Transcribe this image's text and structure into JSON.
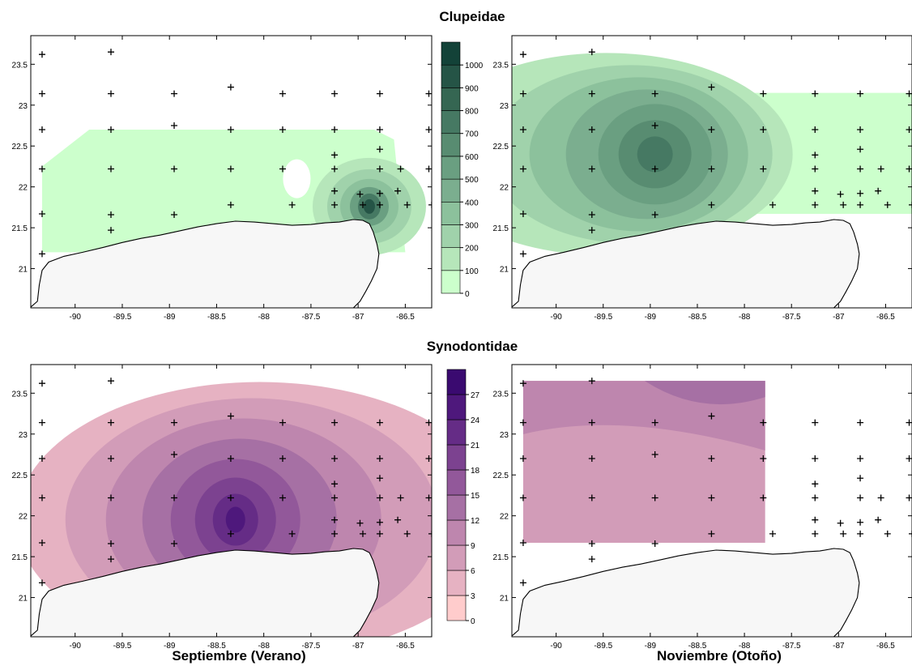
{
  "titles": {
    "row1": "Clupeidae",
    "row2": "Synodontidae",
    "col1": "Septiembre (Verano)",
    "col2": "Noviembre (Otoño)"
  },
  "axes": {
    "x_ticks": [
      "-90",
      "-89.5",
      "-89",
      "-88.5",
      "-88",
      "-87.5",
      "-87",
      "-86.5"
    ],
    "x_values": [
      -90,
      -89.5,
      -89,
      -88.5,
      -88,
      -87.5,
      -87,
      -86.5
    ],
    "y_ticks": [
      "21",
      "21.5",
      "22",
      "22.5",
      "23",
      "23.5"
    ],
    "y_values": [
      21,
      21.5,
      22,
      22.5,
      23,
      23.5
    ],
    "xlim": [
      -90.47,
      -86.22
    ],
    "ylim": [
      20.52,
      23.85
    ]
  },
  "colorbars": {
    "clupeidae": {
      "labels": [
        "0",
        "100",
        "200",
        "300",
        "400",
        "500",
        "600",
        "700",
        "800",
        "900",
        "1000"
      ],
      "colors": [
        "#ccffcc",
        "#b6e6ba",
        "#a0d2ab",
        "#8cc19c",
        "#7bae8f",
        "#6a9f81",
        "#588c71",
        "#467963",
        "#356652",
        "#255446",
        "#134238"
      ]
    },
    "synodontidae": {
      "labels": [
        "0",
        "3",
        "6",
        "9",
        "12",
        "15",
        "18",
        "21",
        "24",
        "27"
      ],
      "colors": [
        "#ffcccc",
        "#e6b2c2",
        "#d29cb8",
        "#be86ae",
        "#a670a4",
        "#92589a",
        "#7c4290",
        "#652c86",
        "#4e187c",
        "#3a0a70"
      ]
    }
  },
  "stations": [
    [
      -90.35,
      23.62
    ],
    [
      -89.62,
      23.65
    ],
    [
      -90.35,
      23.14
    ],
    [
      -89.62,
      23.14
    ],
    [
      -88.95,
      23.14
    ],
    [
      -88.35,
      23.22
    ],
    [
      -87.8,
      23.14
    ],
    [
      -87.25,
      23.14
    ],
    [
      -86.77,
      23.14
    ],
    [
      -86.25,
      23.14
    ],
    [
      -90.35,
      22.7
    ],
    [
      -89.62,
      22.7
    ],
    [
      -88.95,
      22.75
    ],
    [
      -88.35,
      22.7
    ],
    [
      -87.8,
      22.7
    ],
    [
      -87.25,
      22.7
    ],
    [
      -86.77,
      22.7
    ],
    [
      -86.25,
      22.7
    ],
    [
      -87.25,
      22.39
    ],
    [
      -86.77,
      22.46
    ],
    [
      -90.35,
      22.22
    ],
    [
      -89.62,
      22.22
    ],
    [
      -88.95,
      22.22
    ],
    [
      -88.35,
      22.22
    ],
    [
      -87.8,
      22.22
    ],
    [
      -87.25,
      22.22
    ],
    [
      -86.77,
      22.22
    ],
    [
      -86.55,
      22.22
    ],
    [
      -86.25,
      22.22
    ],
    [
      -87.25,
      21.95
    ],
    [
      -86.98,
      21.91
    ],
    [
      -86.77,
      21.92
    ],
    [
      -86.58,
      21.95
    ],
    [
      -90.35,
      21.67
    ],
    [
      -89.62,
      21.66
    ],
    [
      -88.95,
      21.66
    ],
    [
      -88.35,
      21.78
    ],
    [
      -87.7,
      21.78
    ],
    [
      -87.25,
      21.78
    ],
    [
      -86.95,
      21.78
    ],
    [
      -86.77,
      21.78
    ],
    [
      -86.48,
      21.78
    ],
    [
      -86.22,
      21.78
    ],
    [
      -89.62,
      21.47
    ],
    [
      -90.35,
      21.18
    ]
  ]
}
